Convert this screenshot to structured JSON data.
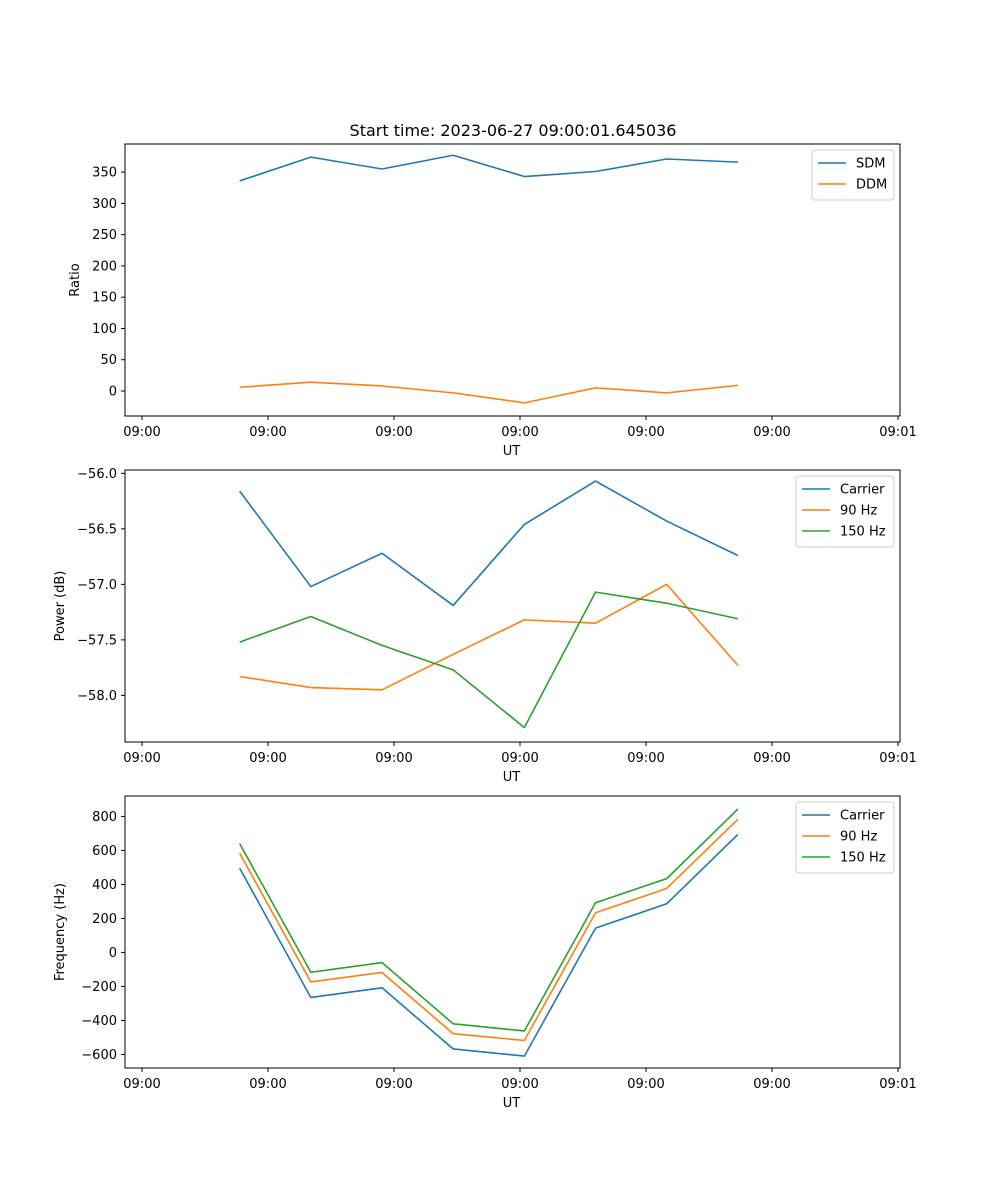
{
  "figure": {
    "title": "Start time: 2023-06-27 09:00:01.645036"
  },
  "chart_data": [
    {
      "type": "line",
      "xlabel": "UT",
      "ylabel": "Ratio",
      "x_ticks": [
        "09:00",
        "09:00",
        "09:00",
        "09:00",
        "09:00",
        "09:00",
        "09:01"
      ],
      "x": [
        1,
        2,
        3,
        4,
        5,
        6,
        7,
        8
      ],
      "xlim": [
        0,
        9
      ],
      "ylim": [
        -40,
        395
      ],
      "yticks": [
        0,
        50,
        100,
        150,
        200,
        250,
        300,
        350
      ],
      "legend": "top-right",
      "series": [
        {
          "name": "SDM",
          "color": "#1f77b4",
          "values": [
            336,
            374,
            355,
            377,
            343,
            351,
            371,
            366
          ]
        },
        {
          "name": "DDM",
          "color": "#ff7f0e",
          "values": [
            6,
            14,
            8,
            -3,
            -19,
            5,
            -3,
            9
          ]
        }
      ]
    },
    {
      "type": "line",
      "xlabel": "UT",
      "ylabel": "Power (dB)",
      "x_ticks": [
        "09:00",
        "09:00",
        "09:00",
        "09:00",
        "09:00",
        "09:00",
        "09:01"
      ],
      "x": [
        1,
        2,
        3,
        4,
        5,
        6,
        7,
        8
      ],
      "xlim": [
        0,
        9
      ],
      "ylim": [
        -58.42,
        -55.97
      ],
      "yticks": [
        -58.0,
        -57.5,
        -57.0,
        -56.5,
        -56.0
      ],
      "legend": "top-right",
      "series": [
        {
          "name": "Carrier",
          "color": "#1f77b4",
          "values": [
            -56.16,
            -57.02,
            -56.72,
            -57.19,
            -56.46,
            -56.07,
            -56.43,
            -56.74
          ]
        },
        {
          "name": "90 Hz",
          "color": "#ff7f0e",
          "values": [
            -57.83,
            -57.93,
            -57.95,
            -57.63,
            -57.32,
            -57.35,
            -57.0,
            -57.73
          ]
        },
        {
          "name": "150 Hz",
          "color": "#2ca02c",
          "values": [
            -57.52,
            -57.29,
            -57.55,
            -57.77,
            -58.29,
            -57.07,
            -57.17,
            -57.31
          ]
        }
      ]
    },
    {
      "type": "line",
      "xlabel": "UT",
      "ylabel": "Frequency (Hz)",
      "x_ticks": [
        "09:00",
        "09:00",
        "09:00",
        "09:00",
        "09:00",
        "09:00",
        "09:01"
      ],
      "x": [
        1,
        2,
        3,
        4,
        5,
        6,
        7,
        8
      ],
      "xlim": [
        0,
        9
      ],
      "ylim": [
        -680,
        920
      ],
      "yticks": [
        -600,
        -400,
        -200,
        0,
        200,
        400,
        600,
        800
      ],
      "legend": "top-right",
      "series": [
        {
          "name": "Carrier",
          "color": "#1f77b4",
          "values": [
            495,
            -265,
            -208,
            -568,
            -610,
            143,
            286,
            694
          ]
        },
        {
          "name": "90 Hz",
          "color": "#ff7f0e",
          "values": [
            583,
            -174,
            -118,
            -478,
            -518,
            233,
            376,
            783
          ]
        },
        {
          "name": "150 Hz",
          "color": "#2ca02c",
          "values": [
            640,
            -117,
            -60,
            -420,
            -462,
            292,
            434,
            843
          ]
        }
      ]
    }
  ]
}
